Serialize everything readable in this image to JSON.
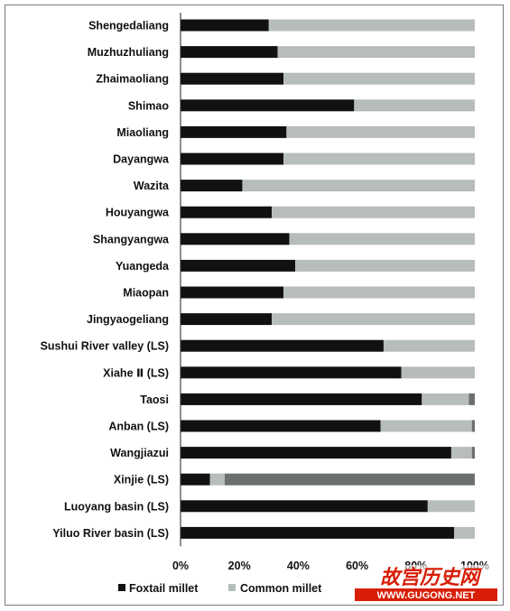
{
  "chart_data": {
    "type": "bar",
    "stacked": true,
    "orientation": "horizontal",
    "percent": true,
    "categories": [
      "Shengedaliang",
      "Muzhuzhuliang",
      "Zhaimaoliang",
      "Shimao",
      "Miaoliang",
      "Dayangwa",
      "Wazita",
      "Houyangwa",
      "Shangyangwa",
      "Yuangeda",
      "Miaopan",
      "Jingyaogeliang",
      "Sushui River valley (LS)",
      "Xiahe Ⅱ (LS)",
      "Taosi",
      "Anban (LS)",
      "Wangjiazui",
      "Xinjie (LS)",
      "Luoyang basin (LS)",
      "Yiluo River basin (LS)"
    ],
    "series": [
      {
        "name": "Foxtail millet",
        "color": "#111111",
        "values": [
          30,
          33,
          35,
          59,
          36,
          35,
          21,
          31,
          37,
          39,
          35,
          31,
          69,
          75,
          82,
          68,
          92,
          10,
          84,
          93
        ]
      },
      {
        "name": "Common millet",
        "color": "#b7bdb9",
        "values": [
          70,
          67,
          65,
          41,
          64,
          65,
          79,
          69,
          63,
          61,
          65,
          69,
          31,
          25,
          16,
          31,
          7,
          5,
          16,
          7
        ]
      },
      {
        "name": "",
        "color": "#6b6f6d",
        "values": [
          0,
          0,
          0,
          0,
          0,
          0,
          0,
          0,
          0,
          0,
          0,
          0,
          0,
          0,
          2,
          1,
          1,
          85,
          0,
          0
        ]
      }
    ],
    "xlim": [
      0,
      100
    ],
    "x_ticks": [
      "0%",
      "20%",
      "40%",
      "60%",
      "80%",
      "100%"
    ],
    "title": "",
    "xlabel": "",
    "ylabel": "",
    "grid": false,
    "legend": {
      "placement": "bottom-left"
    }
  },
  "watermark": {
    "text_main": "故宫历史网",
    "text_url": "WWW.GUGONG.NET",
    "color": "#d81e06"
  }
}
